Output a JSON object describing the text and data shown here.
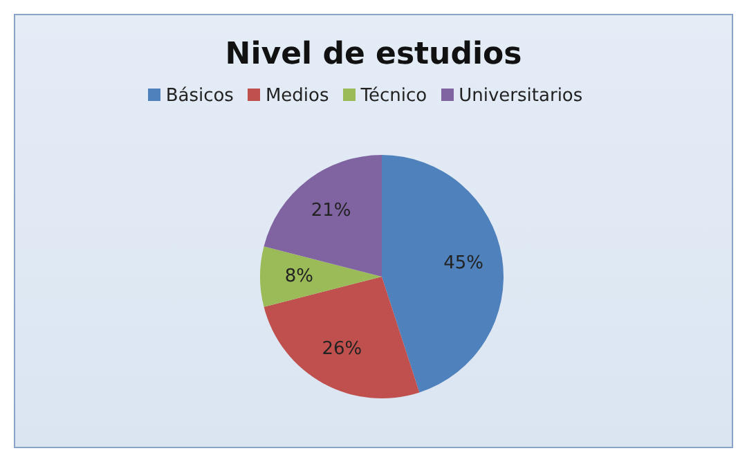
{
  "chart_data": {
    "type": "pie",
    "title": "Nivel de estudios",
    "categories": [
      "Básicos",
      "Medios",
      "Técnico",
      "Universitarios"
    ],
    "values": [
      45,
      26,
      8,
      21
    ],
    "value_labels": [
      "45%",
      "26%",
      "8%",
      "21%"
    ],
    "colors": [
      "#4f81bd",
      "#c0504d",
      "#9bbb59",
      "#8064a2"
    ],
    "legend": "top"
  }
}
